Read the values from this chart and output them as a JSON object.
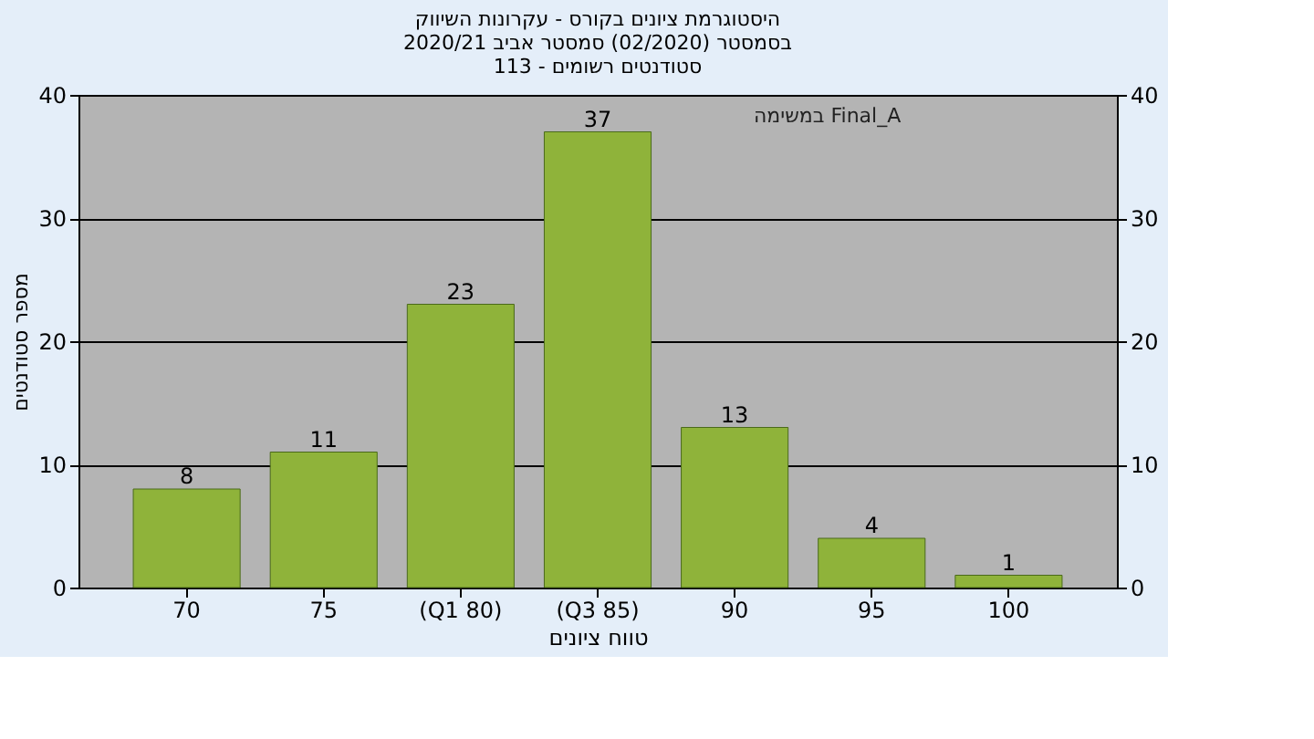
{
  "chart_data": {
    "type": "bar",
    "title": [
      "היסטוגרמת ציונים בקורס - עקרונות השיווק",
      "בסמסטר (02/2020) סמסטר אביב 2020/21",
      "סטודנטים רשומים - 113"
    ],
    "xlabel": "טווח ציונים",
    "ylabel": "מספר סטודנטים",
    "categories": [
      "70",
      "75",
      "(Q1 80)",
      "(Q3 85)",
      "90",
      "95",
      "100"
    ],
    "values": [
      8,
      11,
      23,
      37,
      13,
      4,
      1
    ],
    "color": "#8fb33a",
    "ylim": [
      0,
      40
    ],
    "yticks": [
      0,
      10,
      20,
      30,
      40
    ],
    "y2lim": [
      0,
      40
    ],
    "y2ticks": [
      0,
      10,
      20,
      30,
      40
    ],
    "grid": "y",
    "data_labels": true,
    "annotations": [
      "במשימה Final_A"
    ]
  }
}
